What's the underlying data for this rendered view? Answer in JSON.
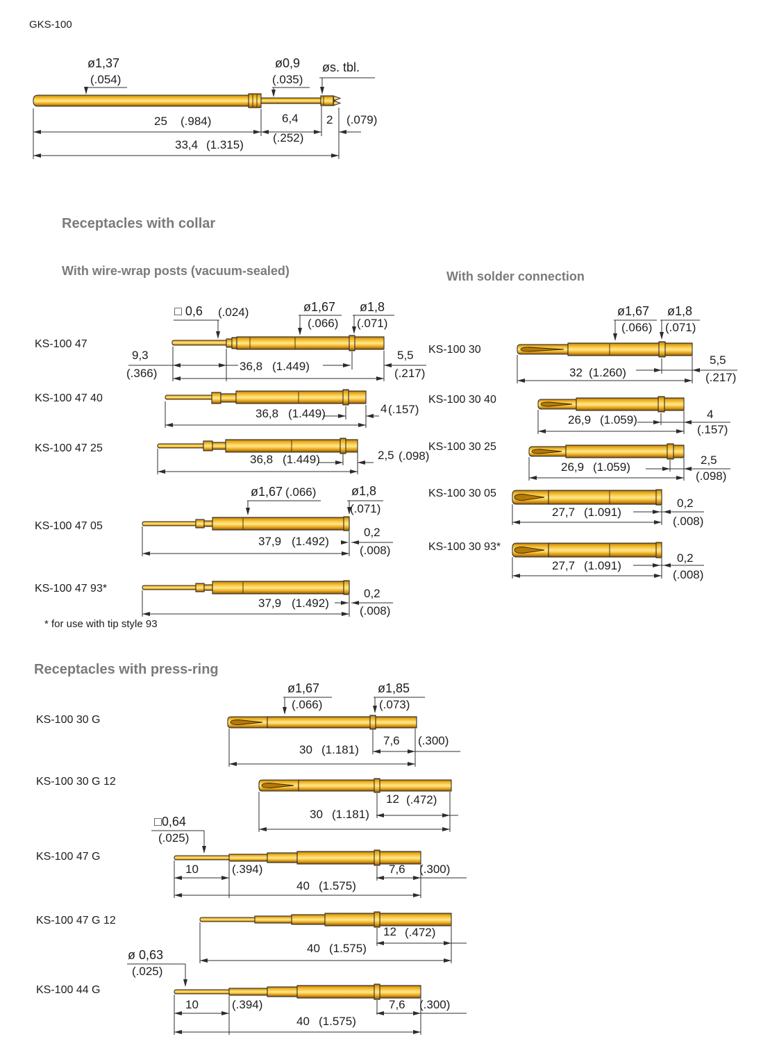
{
  "page": {
    "title": "GKS-100",
    "footnote": "* for use with tip style 93"
  },
  "colors": {
    "gold": "#f2b52a",
    "gold_light": "#ffe793",
    "gold_dark": "#8a5c06",
    "line": "#2c2c2c",
    "heading": "#7a7a7a",
    "text": "#1c1c1c"
  },
  "top_drawing": {
    "dia1_mm": "ø1,37",
    "dia1_in": "(.054)",
    "dia2_mm": "ø0,9",
    "dia2_in": "(.035)",
    "dia3": "øs. tbl.",
    "len1_mm": "25",
    "len1_in": "(.984)",
    "len2_mm": "6,4",
    "len2_in": "(.252)",
    "len3_mm": "2",
    "len3_in": "(.079)",
    "total_mm": "33,4",
    "total_in": "(1.315)"
  },
  "sections": {
    "collar": {
      "heading": "Receptacles with collar",
      "wirewrap": {
        "heading": "With wire-wrap posts (vacuum-sealed)",
        "rows": [
          {
            "label": "KS-100 47",
            "sq_mm": "□ 0,6",
            "sq_in": "(.024)",
            "dia1_mm": "ø1,67",
            "dia1_in": "(.066)",
            "dia2_mm": "ø1,8",
            "dia2_in": "(.071)",
            "post_mm": "9,3",
            "post_in": "(.366)",
            "body_mm": "36,8",
            "body_in": "(1.449)",
            "tail_mm": "5,5",
            "tail_in": "(.217)"
          },
          {
            "label": "KS-100 47 40",
            "body_mm": "36,8",
            "body_in": "(1.449)",
            "tail_mm": "4",
            "tail_in": "(.157)"
          },
          {
            "label": "KS-100 47 25",
            "body_mm": "36,8",
            "body_in": "(1.449)",
            "tail_mm": "2,5",
            "tail_in": "(.098)"
          },
          {
            "label": "KS-100 47 05",
            "dia1_mm": "ø1,67",
            "dia1_in": "(.066)",
            "dia2_mm": "ø1,8",
            "dia2_in": "(.071)",
            "body_mm": "37,9",
            "body_in": "(1.492)",
            "tail_mm": "0,2",
            "tail_in": "(.008)"
          },
          {
            "label": "KS-100 47 93*",
            "body_mm": "37,9",
            "body_in": "(1.492)",
            "tail_mm": "0,2",
            "tail_in": "(.008)"
          }
        ]
      },
      "solder": {
        "heading": "With solder connection",
        "rows": [
          {
            "label": "KS-100 30",
            "dia1_mm": "ø1,67",
            "dia1_in": "(.066)",
            "dia2_mm": "ø1,8",
            "dia2_in": "(.071)",
            "body_mm": "32",
            "body_in": "(1.260)",
            "tail_mm": "5,5",
            "tail_in": "(.217)"
          },
          {
            "label": "KS-100 30 40",
            "body_mm": "26,9",
            "body_in": "(1.059)",
            "tail_mm": "4",
            "tail_in": "(.157)"
          },
          {
            "label": "KS-100 30 25",
            "body_mm": "26,9",
            "body_in": "(1.059)",
            "tail_mm": "2,5",
            "tail_in": "(.098)"
          },
          {
            "label": "KS-100 30 05",
            "body_mm": "27,7",
            "body_in": "(1.091)",
            "tail_mm": "0,2",
            "tail_in": "(.008)"
          },
          {
            "label": "KS-100 30 93*",
            "body_mm": "27,7",
            "body_in": "(1.091)",
            "tail_mm": "0,2",
            "tail_in": "(.008)"
          }
        ]
      }
    },
    "pressring": {
      "heading": "Receptacles with press-ring",
      "rows": [
        {
          "label": "KS-100 30 G",
          "dia1_mm": "ø1,67",
          "dia1_in": "(.066)",
          "dia2_mm": "ø1,85",
          "dia2_in": "(.073)",
          "body_mm": "30",
          "body_in": "(1.181)",
          "tail_mm": "7,6",
          "tail_in": "(.300)"
        },
        {
          "label": "KS-100 30 G 12",
          "body_mm": "30",
          "body_in": "(1.181)",
          "tail_mm": "12",
          "tail_in": "(.472)"
        },
        {
          "label": "KS-100 47 G",
          "sq_mm": "□0,64",
          "sq_in": "(.025)",
          "post_mm": "10",
          "post_in": "(.394)",
          "body_mm": "40",
          "body_in": "(1.575)",
          "tail_mm": "7,6",
          "tail_in": "(.300)"
        },
        {
          "label": "KS-100 47 G 12",
          "body_mm": "40",
          "body_in": "(1.575)",
          "tail_mm": "12",
          "tail_in": "(.472)"
        },
        {
          "label": "KS-100 44 G",
          "dia_mm": "ø 0,63",
          "dia_in": "(.025)",
          "post_mm": "10",
          "post_in": "(.394)",
          "body_mm": "40",
          "body_in": "(1.575)",
          "tail_mm": "7,6",
          "tail_in": "(.300)"
        }
      ]
    }
  }
}
